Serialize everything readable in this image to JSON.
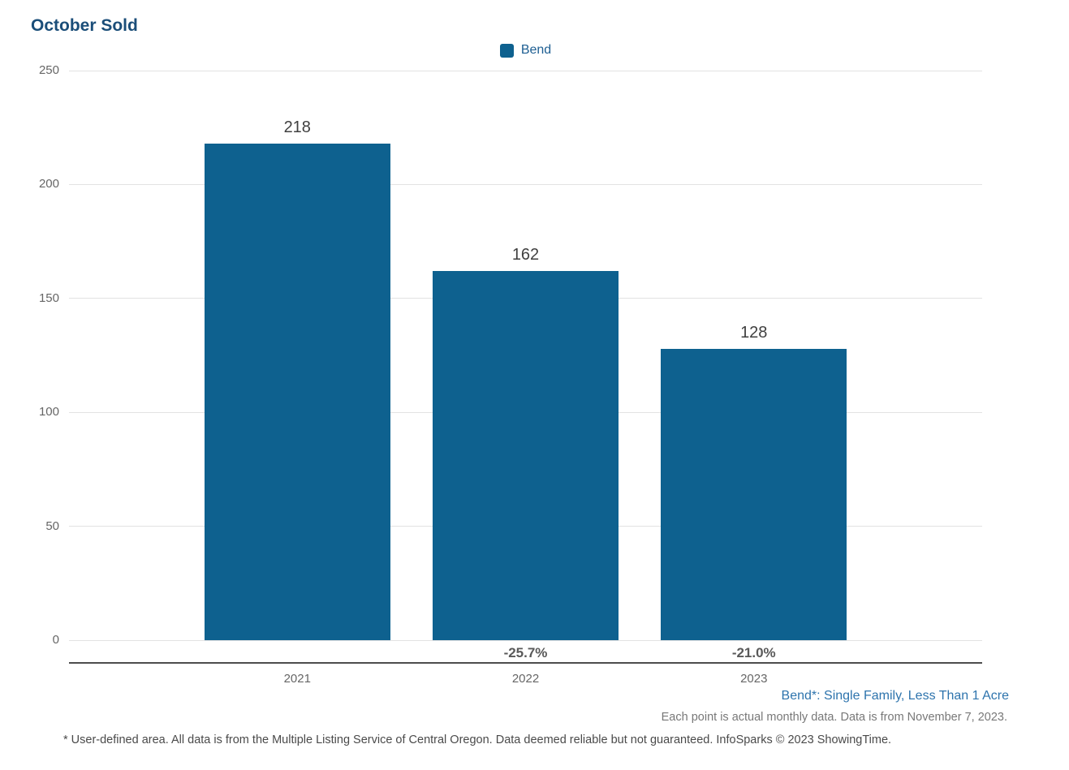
{
  "chart_data": {
    "type": "bar",
    "title": "October Sold",
    "categories": [
      "2021",
      "2022",
      "2023"
    ],
    "series": [
      {
        "name": "Bend",
        "color": "#0e618f",
        "values": [
          218,
          162,
          128
        ]
      }
    ],
    "pct_change_labels": [
      "",
      "-25.7%",
      "-21.0%"
    ],
    "ylim": [
      0,
      250
    ],
    "yticks": [
      0,
      50,
      100,
      150,
      200,
      250
    ],
    "grid": "horizontal",
    "legend_position": "top-center",
    "xlabel": "",
    "ylabel": ""
  },
  "footnotes": {
    "series_definition": "Bend*: Single Family, Less Than 1 Acre",
    "data_note": "Each point is actual monthly data. Data is from November 7, 2023.",
    "disclaimer": "* User-defined area. All data is from the Multiple Listing Service of Central Oregon. Data deemed reliable but not guaranteed. InfoSparks © 2023 ShowingTime."
  },
  "colors": {
    "bar": "#0e618f",
    "title": "#1b4e79",
    "legend_text": "#1d5e92",
    "axis_text": "#666666",
    "value_label": "#404040",
    "pct_label": "#595959",
    "gridline": "#e2e2e2",
    "axis_line": "#4d4d4d",
    "footnote_link": "#2e74ad",
    "footnote_gray": "#787878",
    "disclaimer_text": "#4a4a4a"
  }
}
